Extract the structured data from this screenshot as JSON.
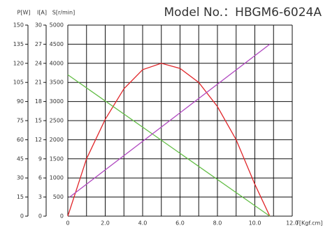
{
  "chart_data": {
    "type": "line",
    "title": "Model No.：HBGM6-6024A",
    "xlabel": "T[Kgf.cm]",
    "xlim": [
      0,
      12
    ],
    "xticks": [
      0,
      {
        "value": 2,
        "label": "2.0"
      },
      {
        "value": 4,
        "label": "4.0"
      },
      {
        "value": 6,
        "label": "6.0"
      },
      {
        "value": 8,
        "label": "8.0"
      },
      {
        "value": 10,
        "label": "10.0"
      },
      {
        "value": 12,
        "label": "12.0"
      }
    ],
    "xminor": [
      1,
      3,
      5,
      7,
      9,
      11
    ],
    "axes": [
      {
        "id": "p",
        "label": "P[W]",
        "lim": [
          0,
          150
        ],
        "ticks": [
          0,
          15,
          30,
          45,
          60,
          75,
          90,
          105,
          120,
          135,
          150
        ]
      },
      {
        "id": "i",
        "label": "I[A]",
        "lim": [
          0,
          30
        ],
        "ticks": [
          0,
          3,
          6,
          9,
          12,
          15,
          18,
          21,
          24,
          27,
          30
        ]
      },
      {
        "id": "s",
        "label": "S[r/min]",
        "lim": [
          0,
          5000
        ],
        "ticks": [
          0,
          500,
          1000,
          1500,
          2000,
          2500,
          3000,
          3500,
          4000,
          4500,
          5000
        ]
      }
    ],
    "grid": true,
    "series": [
      {
        "color": "#e0262a",
        "axis": "p",
        "x": [
          0,
          1,
          2,
          3,
          4,
          5,
          6,
          7,
          8,
          9,
          10,
          10.8
        ],
        "values": [
          0,
          45,
          76,
          100,
          115,
          120,
          116,
          105,
          86,
          60,
          25,
          0
        ]
      },
      {
        "color": "#62bd45",
        "axis": "s",
        "x": [
          0,
          10.8
        ],
        "values": [
          3700,
          0
        ]
      },
      {
        "color": "#b048c0",
        "axis": "i",
        "x": [
          0.1,
          10.8
        ],
        "values": [
          3,
          27
        ]
      }
    ]
  }
}
